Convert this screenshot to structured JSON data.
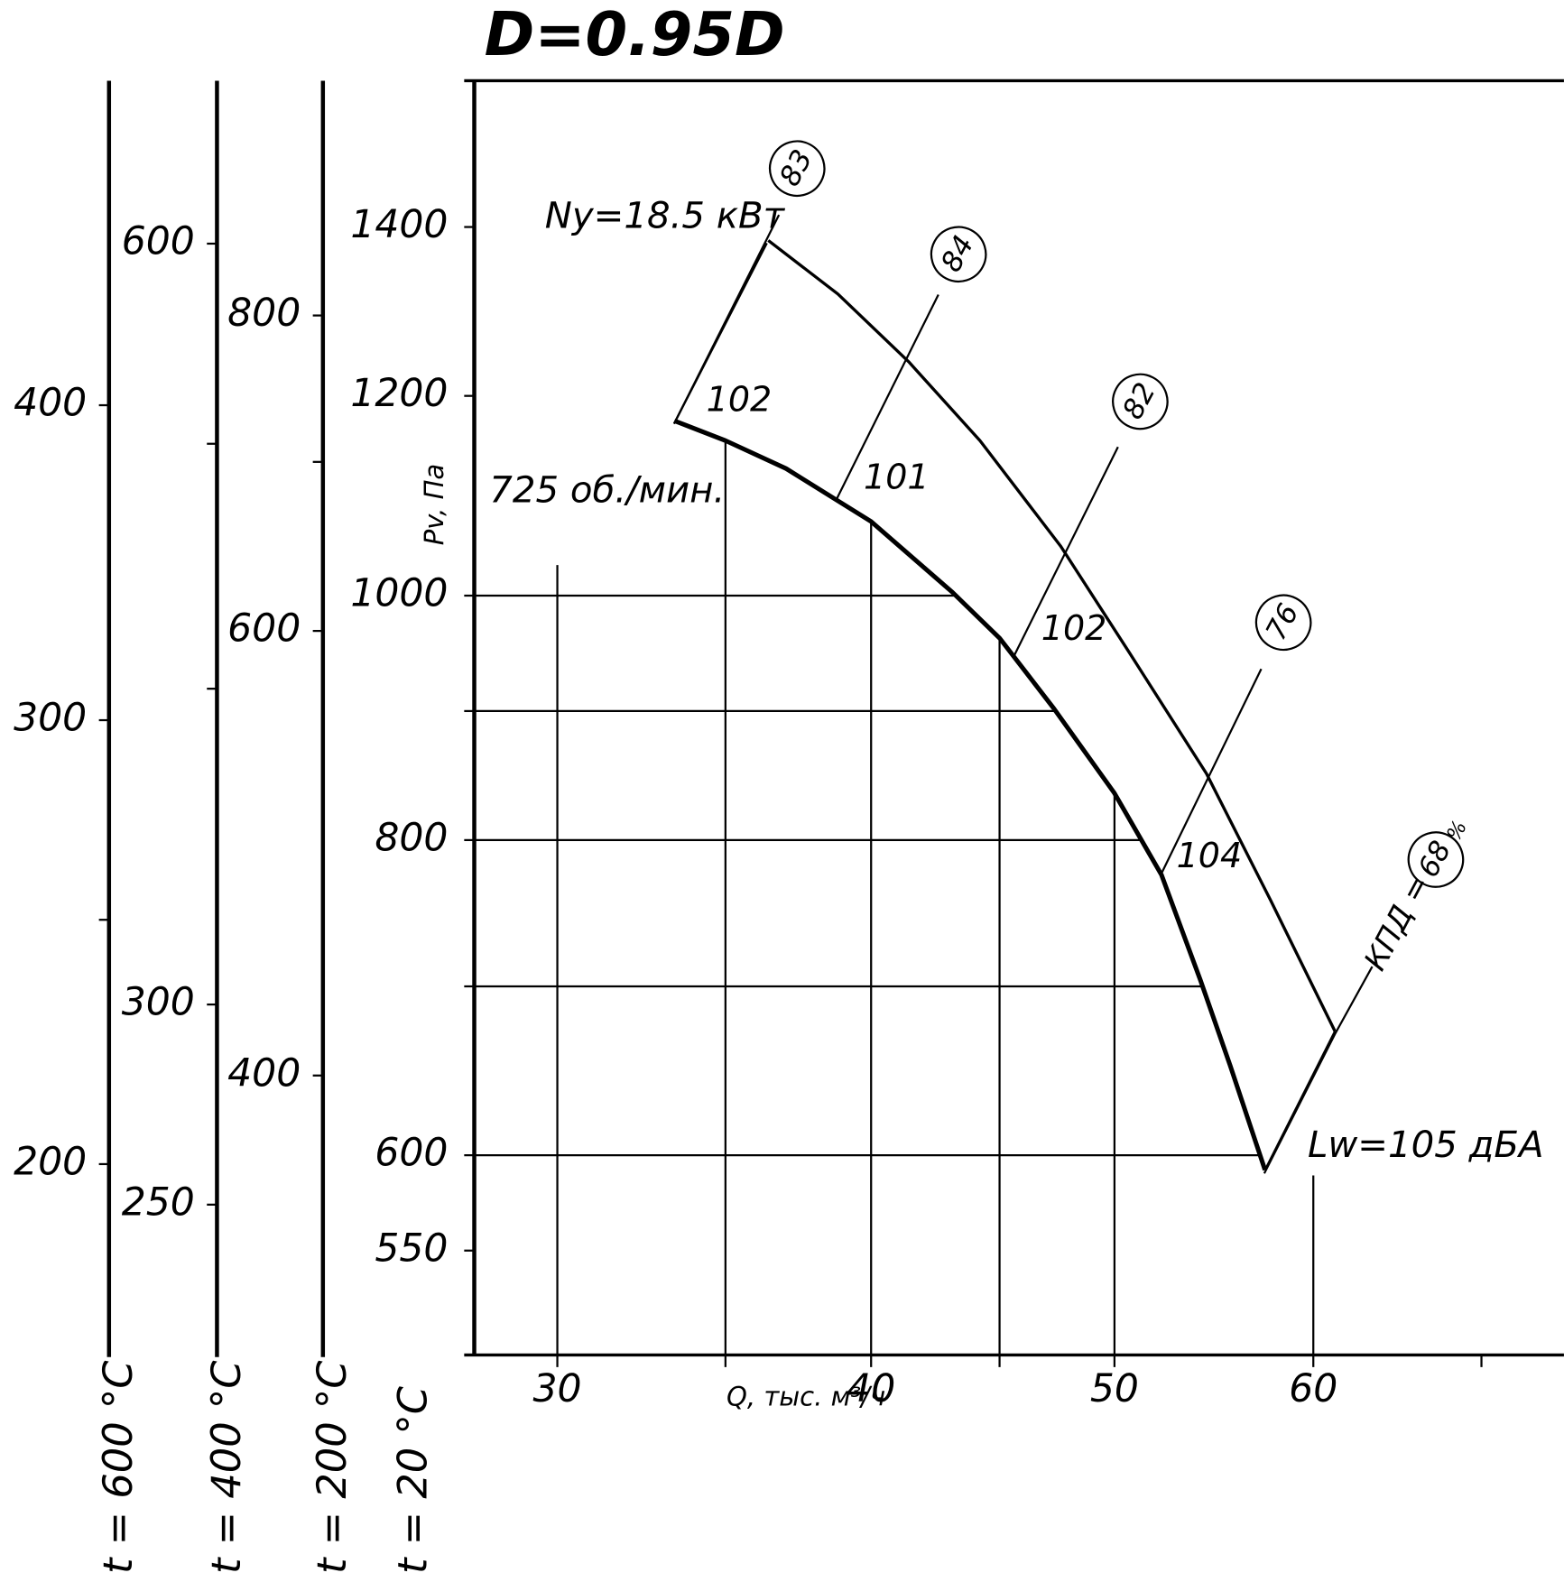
{
  "chart_data": {
    "type": "line",
    "title": "D=0.95D",
    "x_label": "Q, тыс. м³/ч",
    "y_label": "Pv, Па",
    "y_axis_caption": "t = 20 °C",
    "xscale": "log",
    "yscale": "log",
    "xlim": [
      27.8,
      75.5
    ],
    "ylim": [
      500,
      1600
    ],
    "xticks": [
      30,
      40,
      50,
      60
    ],
    "x_minor_ticks": [
      35,
      45,
      70
    ],
    "yticks": [
      550,
      600,
      800,
      1000,
      1200,
      1400
    ],
    "y_minor_ticks": [
      700,
      900
    ],
    "grid": true,
    "series": [
      {
        "color": "#000000",
        "width": 4.5,
        "x": [
          33.4,
          35.0,
          37.0,
          40.0,
          43.1,
          45.0,
          47.3,
          50.0,
          52.2,
          54.1,
          55.6,
          57.4
        ],
        "values": [
          1173,
          1152,
          1123,
          1070,
          1003,
          962,
          902,
          835,
          775,
          704,
          651,
          592
        ]
      },
      {
        "color": "#000000",
        "width": 3,
        "x": [
          36.4,
          38.8,
          41.4,
          44.2,
          47.6,
          50.7,
          54.4,
          57.7,
          61.2
        ],
        "values": [
          1383,
          1317,
          1238,
          1152,
          1046,
          949,
          850,
          757,
          672
        ]
      }
    ],
    "temperature_axes": [
      {
        "label": "t = 600 °C",
        "ylim": [
          168,
          538
        ],
        "yticks": [
          200,
          300,
          400
        ],
        "minor_ticks": [
          250
        ]
      },
      {
        "label": "t = 400 °C",
        "ylim": [
          218,
          696
        ],
        "yticks": [
          250,
          300,
          600
        ],
        "minor_ticks": [
          400,
          500
        ]
      },
      {
        "label": "t = 200 °C",
        "ylim": [
          310,
          991
        ],
        "yticks": [
          400,
          600,
          800
        ],
        "minor_ticks": [
          700
        ]
      }
    ],
    "annotations": [
      "Ny=18.5 кВт",
      "725 об./мин.",
      "Lw=105 дБА",
      "83",
      "84",
      "82",
      "76",
      "68",
      "102",
      "101",
      "102",
      "104",
      "КПД =",
      "%"
    ]
  }
}
